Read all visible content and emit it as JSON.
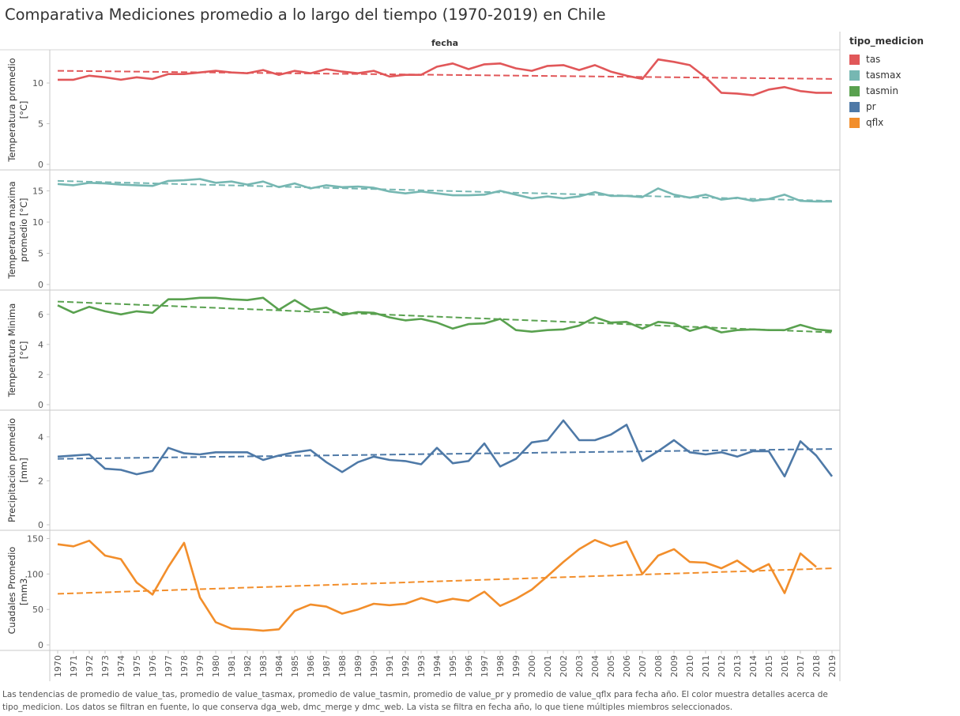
{
  "title": "Comparativa Mediciones promedio a lo largo del tiempo (1970-2019) en Chile",
  "column_header": "fecha",
  "legend": {
    "title": "tipo_medicion",
    "items": [
      {
        "label": "tas",
        "color": "#e15759"
      },
      {
        "label": "tasmax",
        "color": "#76b7b2"
      },
      {
        "label": "tasmin",
        "color": "#59a14f"
      },
      {
        "label": "pr",
        "color": "#4e79a7"
      },
      {
        "label": "qflx",
        "color": "#f28e2b"
      }
    ]
  },
  "caption": "Las tendencias de promedio de value_tas, promedio de value_tasmax, promedio de value_tasmin, promedio de value_pr y promedio de value_qflx para fecha año.  El color muestra detalles acerca de tipo_medicion. Los datos se filtran en fuente, lo que conserva dga_web, dmc_merge y dmc_web. La vista se filtra en fecha año, lo que tiene múltiples miembros seleccionados.",
  "chart_data": {
    "type": "line",
    "x": [
      1970,
      1971,
      1972,
      1973,
      1974,
      1975,
      1976,
      1977,
      1978,
      1979,
      1980,
      1981,
      1982,
      1983,
      1984,
      1985,
      1986,
      1987,
      1988,
      1989,
      1990,
      1991,
      1992,
      1993,
      1994,
      1995,
      1996,
      1997,
      1998,
      1999,
      2000,
      2001,
      2002,
      2003,
      2004,
      2005,
      2006,
      2007,
      2008,
      2009,
      2010,
      2011,
      2012,
      2013,
      2014,
      2015,
      2016,
      2017,
      2018,
      2019
    ],
    "xlabel": "fecha",
    "grid": false,
    "legend_position": "right",
    "panels": [
      {
        "series": "tas",
        "ylabel": "Temperatura promedio [°C]",
        "color": "#e15759",
        "ylim": [
          0,
          13.5
        ],
        "yticks": [
          0,
          5,
          10
        ],
        "trend": [
          11.5,
          10.5
        ],
        "values": [
          10.4,
          10.4,
          10.9,
          10.7,
          10.4,
          10.7,
          10.5,
          11.1,
          11.1,
          11.3,
          11.5,
          11.3,
          11.2,
          11.6,
          11.0,
          11.5,
          11.2,
          11.7,
          11.4,
          11.2,
          11.5,
          10.8,
          11.0,
          11.0,
          12.0,
          12.4,
          11.7,
          12.3,
          12.4,
          11.8,
          11.5,
          12.1,
          12.2,
          11.6,
          12.2,
          11.4,
          10.9,
          10.5,
          12.9,
          12.6,
          12.2,
          10.7,
          8.8,
          8.7,
          8.5,
          9.2,
          9.5,
          9.0,
          8.8,
          8.8
        ]
      },
      {
        "series": "tasmax",
        "ylabel": "Temperatura maxima promedio [°C]",
        "color": "#76b7b2",
        "ylim": [
          0,
          17.6
        ],
        "yticks": [
          0,
          5,
          10,
          15
        ],
        "trend": [
          16.6,
          13.4
        ],
        "values": [
          16.1,
          15.9,
          16.3,
          16.2,
          16.0,
          15.9,
          15.8,
          16.6,
          16.7,
          16.9,
          16.3,
          16.5,
          16.0,
          16.5,
          15.6,
          16.2,
          15.4,
          15.9,
          15.6,
          15.7,
          15.5,
          14.9,
          14.6,
          14.9,
          14.6,
          14.3,
          14.3,
          14.4,
          15.0,
          14.4,
          13.8,
          14.1,
          13.8,
          14.1,
          14.8,
          14.2,
          14.2,
          14.0,
          15.4,
          14.4,
          13.9,
          14.4,
          13.6,
          13.9,
          13.4,
          13.7,
          14.4,
          13.4,
          13.3,
          13.3
        ]
      },
      {
        "series": "tasmin",
        "ylabel": "Temperatura Minima [°C]",
        "color": "#59a14f",
        "ylim": [
          0,
          7.3
        ],
        "yticks": [
          0,
          2,
          4,
          6
        ],
        "trend": [
          6.85,
          4.8
        ],
        "values": [
          6.6,
          6.1,
          6.5,
          6.2,
          6.0,
          6.2,
          6.1,
          7.0,
          7.0,
          7.1,
          7.1,
          7.0,
          6.95,
          7.1,
          6.3,
          6.95,
          6.3,
          6.45,
          5.95,
          6.15,
          6.1,
          5.8,
          5.6,
          5.7,
          5.45,
          5.05,
          5.35,
          5.4,
          5.7,
          4.95,
          4.85,
          4.95,
          5.0,
          5.25,
          5.8,
          5.45,
          5.5,
          5.05,
          5.5,
          5.4,
          4.9,
          5.2,
          4.8,
          4.95,
          5.0,
          4.95,
          4.95,
          5.3,
          5.0,
          4.9
        ]
      },
      {
        "series": "pr",
        "ylabel": "Precipitacion promedio [mm]",
        "color": "#4e79a7",
        "ylim": [
          0,
          5.0
        ],
        "yticks": [
          0,
          2,
          4
        ],
        "trend": [
          3.0,
          3.45
        ],
        "values": [
          3.1,
          3.15,
          3.2,
          2.55,
          2.5,
          2.3,
          2.45,
          3.5,
          3.25,
          3.2,
          3.3,
          3.3,
          3.3,
          2.95,
          3.15,
          3.3,
          3.4,
          2.85,
          2.4,
          2.85,
          3.1,
          2.95,
          2.9,
          2.75,
          3.5,
          2.8,
          2.9,
          3.7,
          2.65,
          3.0,
          3.75,
          3.85,
          4.75,
          3.85,
          3.85,
          4.1,
          4.55,
          2.9,
          3.35,
          3.85,
          3.3,
          3.2,
          3.3,
          3.1,
          3.35,
          3.35,
          2.2,
          3.8,
          3.15,
          2.2
        ]
      },
      {
        "series": "qflx",
        "ylabel": "Cuadales Promedio [mm3.",
        "color": "#f28e2b",
        "ylim": [
          0,
          155
        ],
        "yticks": [
          0,
          50,
          100,
          150
        ],
        "trend": [
          72,
          108
        ],
        "values": [
          142,
          139,
          147,
          126,
          121,
          88,
          71,
          110,
          144,
          67,
          32,
          23,
          22,
          20,
          22,
          48,
          57,
          54,
          44,
          50,
          58,
          56,
          58,
          66,
          60,
          65,
          62,
          75,
          55,
          65,
          78,
          97,
          117,
          135,
          148,
          139,
          146,
          100,
          126,
          135,
          117,
          116,
          108,
          119,
          103,
          114,
          73,
          129,
          110,
          null
        ]
      }
    ]
  }
}
